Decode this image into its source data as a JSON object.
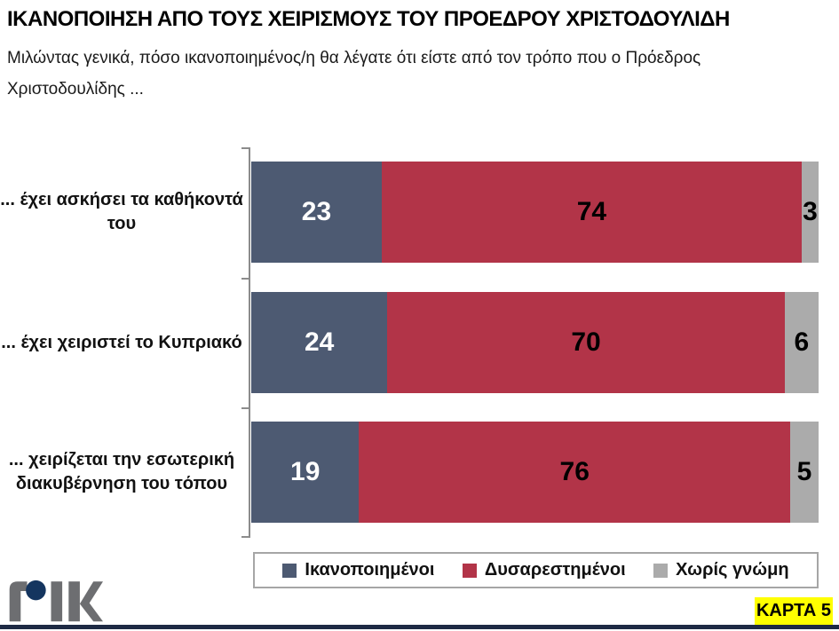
{
  "page": {
    "title": "ΙΚΑΝΟΠΟΙΗΣΗ ΑΠΟ ΤΟΥΣ ΧΕΙΡΙΣΜΟΥΣ ΤΟΥ ΠΡΟΕΔΡΟΥ ΧΡΙΣΤΟΔΟΥΛΙΔΗ",
    "subtitle": "Μιλώντας γενικά, πόσο ικανοποιημένος/η θα λέγατε ότι είστε από τον τρόπο που ο Πρόεδρος Χριστοδουλίδης ..."
  },
  "chart_data": {
    "type": "bar",
    "orientation": "horizontal",
    "stacked": true,
    "x_range": [
      0,
      100
    ],
    "unit": "percent",
    "grid": false,
    "legend_position": "bottom-center",
    "categories": [
      "... έχει ασκήσει τα καθήκοντά του",
      "... έχει χειριστεί το Κυπριακό",
      "... χειρίζεται την εσωτερική διακυβέρνηση του τόπου"
    ],
    "series": [
      {
        "name": "Ικανοποιημένοι",
        "color": "#4D5A72",
        "text_color": "#FFFFFF",
        "values": [
          23,
          24,
          19
        ]
      },
      {
        "name": "Δυσαρεστημένοι",
        "color": "#B23448",
        "text_color": "#000000",
        "values": [
          74,
          70,
          76
        ]
      },
      {
        "name": "Χωρίς γνώμη",
        "color": "#ABABAB",
        "text_color": "#000000",
        "values": [
          3,
          6,
          5
        ]
      }
    ]
  },
  "footer": {
    "logo": "ΡΙΚ",
    "card_label": "ΚΑΡΤΑ 5"
  },
  "colors": {
    "card_bg": "#FFFF00",
    "bottom_strip": "#1E2A44",
    "logo_gray": "#6D6E71",
    "logo_navy": "#14355F",
    "axis": "#8C8C8C"
  }
}
